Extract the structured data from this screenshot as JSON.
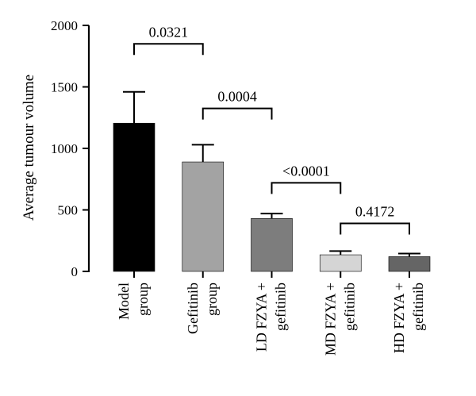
{
  "chart_data": {
    "type": "bar",
    "title": "",
    "xlabel": "",
    "ylabel": "Average tumour volume",
    "ylim": [
      0,
      2000
    ],
    "yticks": [
      0,
      500,
      1000,
      1500,
      2000
    ],
    "grid": false,
    "categories": [
      [
        "Model",
        "group"
      ],
      [
        "Gefitinib",
        "group"
      ],
      [
        "LD FZYA +",
        "gefitinib"
      ],
      [
        "MD FZYA +",
        "gefitinib"
      ],
      [
        "HD FZYA +",
        "gefitinib"
      ]
    ],
    "values": [
      1205,
      890,
      430,
      135,
      120
    ],
    "errors": [
      255,
      140,
      40,
      30,
      25
    ],
    "colors": [
      "#000000",
      "#a3a3a3",
      "#7d7d7d",
      "#d5d5d5",
      "#656565"
    ],
    "comparisons": [
      {
        "from": 0,
        "to": 1,
        "level": 1850,
        "label": "0.0321"
      },
      {
        "from": 1,
        "to": 2,
        "level": 1325,
        "label": "0.0004"
      },
      {
        "from": 2,
        "to": 3,
        "level": 720,
        "label": "<0.0001"
      },
      {
        "from": 3,
        "to": 4,
        "level": 390,
        "label": "0.4172"
      }
    ]
  }
}
